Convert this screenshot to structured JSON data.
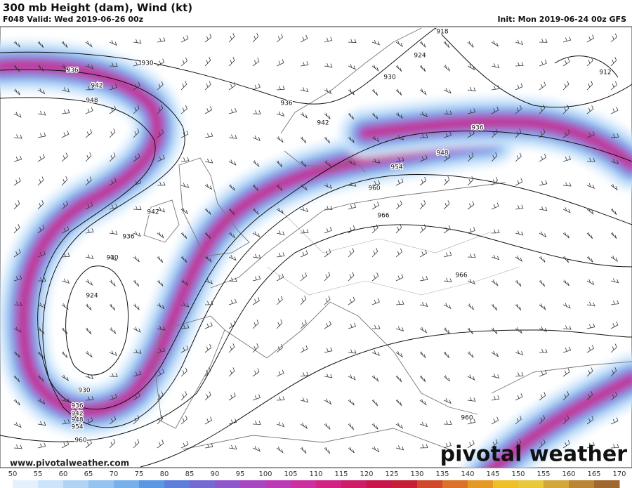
{
  "header": {
    "title": "300 mb Height (dam), Wind (kt)",
    "subtitle": "F048 Valid: Wed 2019-06-26 00z",
    "init": "Init: Mon 2019-06-24 00z GFS"
  },
  "contour_labels": [
    936,
    930,
    942,
    948,
    936,
    942,
    930,
    924,
    918,
    912,
    936,
    948,
    954,
    960,
    966,
    966,
    942,
    936,
    930,
    924,
    930,
    936,
    942,
    948,
    954,
    960,
    960
  ],
  "footer": {
    "website": "www.pivotalweather.com",
    "logo": "pivotal weather"
  },
  "colorbar": {
    "ticks": [
      50,
      55,
      60,
      65,
      70,
      75,
      80,
      85,
      90,
      95,
      100,
      105,
      110,
      115,
      120,
      125,
      130,
      135,
      140,
      145,
      150,
      155,
      160,
      165,
      170
    ]
  }
}
